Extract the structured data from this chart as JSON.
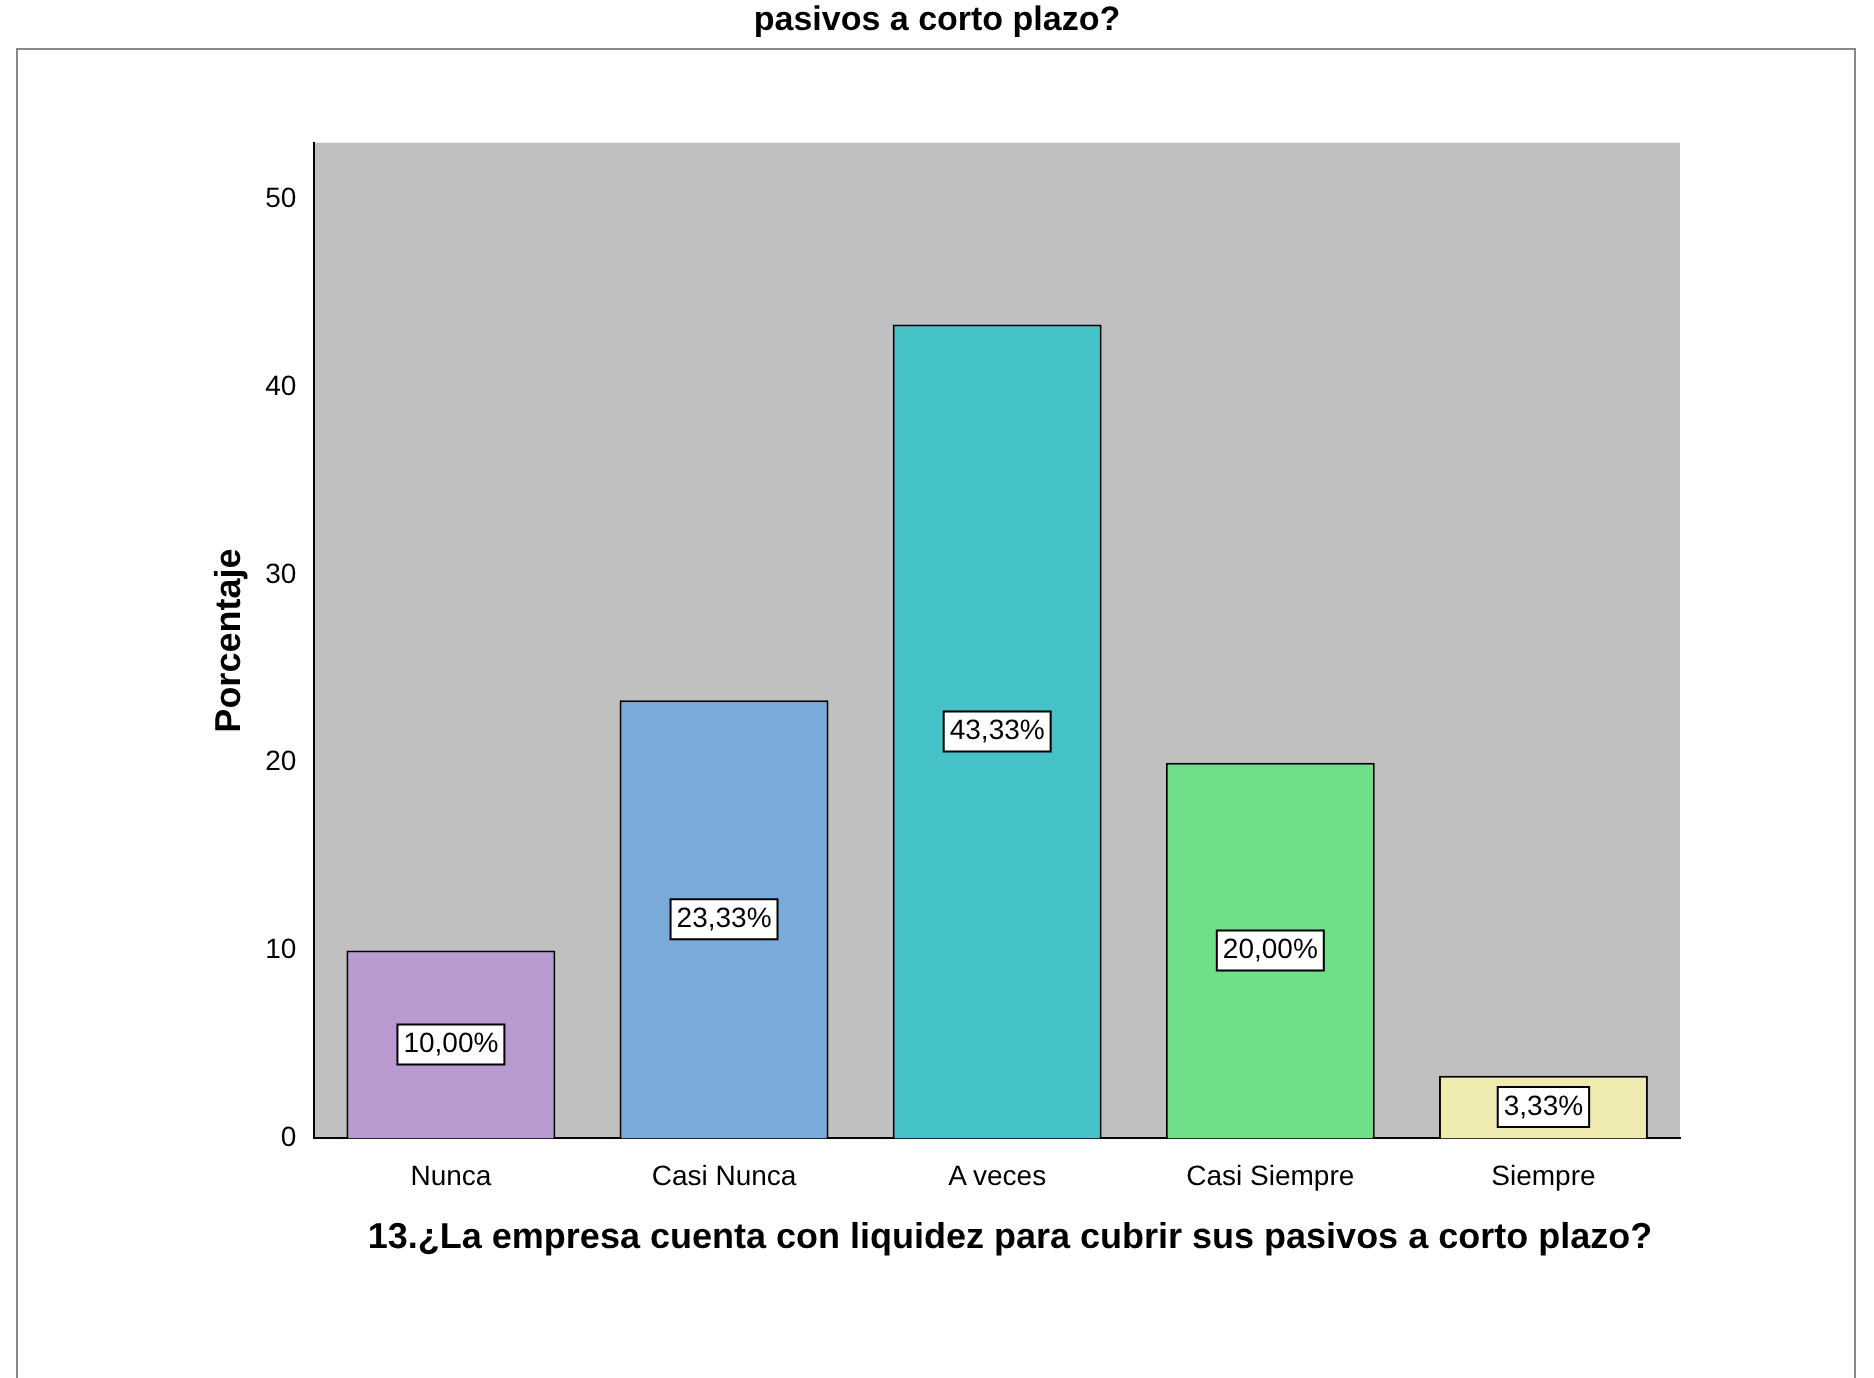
{
  "chart_data": {
    "type": "bar",
    "title": "pasivos a corto plazo?",
    "xlabel": "13.¿La empresa cuenta con liquidez para cubrir sus pasivos a corto plazo?",
    "ylabel": "Porcentaje",
    "categories": [
      "Nunca",
      "Casi Nunca",
      "A veces",
      "Casi Siempre",
      "Siempre"
    ],
    "values": [
      10,
      23.33,
      43.33,
      20,
      3.33
    ],
    "value_labels": [
      "10,00%",
      "23,33%",
      "43,33%",
      "20,00%",
      "3,33%"
    ],
    "colors": [
      "#b99ad0",
      "#7aaad8",
      "#46c3c8",
      "#6fdf88",
      "#efeab0"
    ],
    "ylim": [
      0,
      53
    ],
    "yticks": [
      0,
      10,
      20,
      30,
      40,
      50
    ],
    "grid": false,
    "legend": false
  }
}
